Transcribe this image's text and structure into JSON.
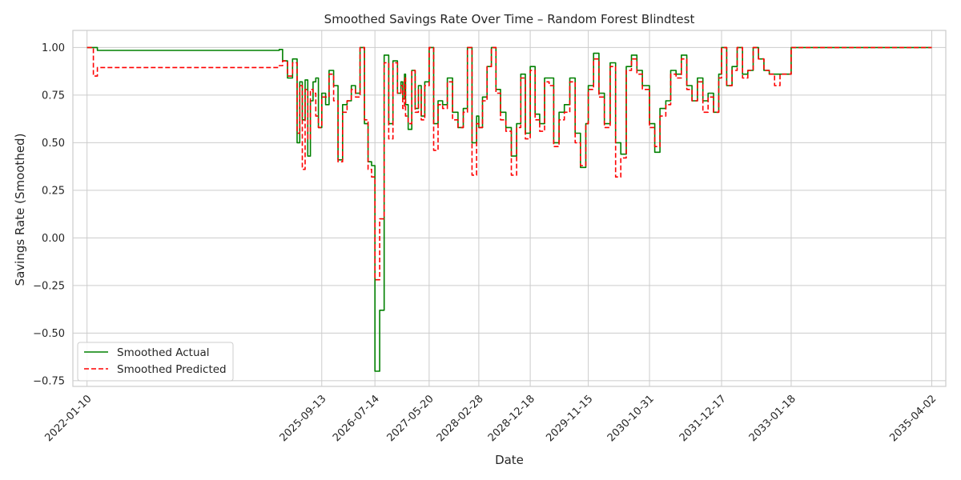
{
  "chart_data": {
    "type": "line",
    "title": "Smoothed Savings Rate Over Time – Random Forest Blindtest",
    "xlabel": "Date",
    "ylabel": "Savings Rate (Smoothed)",
    "xlim": [
      "2021-10-21",
      "2035-06-21"
    ],
    "ylim": [
      -0.78,
      1.09
    ],
    "yticks": [
      -0.75,
      -0.5,
      -0.25,
      0.0,
      0.25,
      0.5,
      0.75,
      1.0
    ],
    "ytick_labels": [
      "−0.75",
      "−0.50",
      "−0.25",
      "0.00",
      "0.25",
      "0.50",
      "0.75",
      "1.00"
    ],
    "xticks": [
      "2022-01-10",
      "2025-09-13",
      "2026-07-14",
      "2027-05-20",
      "2028-02-28",
      "2028-12-18",
      "2029-11-15",
      "2030-10-31",
      "2031-12-17",
      "2033-01-18",
      "2035-04-02"
    ],
    "grid": true,
    "legend_position": "lower-left",
    "colors": {
      "actual": "#008000",
      "predicted": "#ff0000",
      "grid": "#cccccc",
      "frame": "#cccccc",
      "text": "#262626"
    },
    "series": [
      {
        "name": "Smoothed Actual",
        "style": "solid",
        "x": [
          "2022-01-10",
          "2022-02-15",
          "2022-03-10",
          "2025-01-13",
          "2025-02-01",
          "2025-03-01",
          "2025-03-30",
          "2025-04-25",
          "2025-05-10",
          "2025-05-25",
          "2025-06-10",
          "2025-06-25",
          "2025-07-10",
          "2025-07-25",
          "2025-08-10",
          "2025-08-25",
          "2025-09-13",
          "2025-10-05",
          "2025-10-25",
          "2025-11-20",
          "2025-12-15",
          "2026-01-10",
          "2026-02-05",
          "2026-03-01",
          "2026-03-25",
          "2026-04-20",
          "2026-05-15",
          "2026-06-05",
          "2026-06-25",
          "2026-07-14",
          "2026-08-10",
          "2026-09-05",
          "2026-10-01",
          "2026-10-25",
          "2026-11-20",
          "2026-12-10",
          "2026-12-20",
          "2026-12-30",
          "2027-01-05",
          "2027-01-20",
          "2027-02-10",
          "2027-03-01",
          "2027-03-20",
          "2027-04-05",
          "2027-04-25",
          "2027-05-20",
          "2027-06-15",
          "2027-07-10",
          "2027-08-05",
          "2027-09-01",
          "2027-10-01",
          "2027-11-01",
          "2027-12-01",
          "2027-12-25",
          "2028-01-20",
          "2028-02-15",
          "2028-02-28",
          "2028-03-20",
          "2028-04-15",
          "2028-05-10",
          "2028-06-05",
          "2028-07-01",
          "2028-08-01",
          "2028-09-01",
          "2028-10-01",
          "2028-10-25",
          "2028-11-20",
          "2028-12-18",
          "2029-01-15",
          "2029-02-10",
          "2029-03-10",
          "2029-04-05",
          "2029-05-01",
          "2029-06-01",
          "2029-07-01",
          "2029-08-01",
          "2029-09-01",
          "2029-10-01",
          "2029-11-01",
          "2029-11-15",
          "2029-12-15",
          "2030-01-15",
          "2030-02-15",
          "2030-03-20",
          "2030-04-20",
          "2030-05-20",
          "2030-06-20",
          "2030-07-20",
          "2030-08-20",
          "2030-09-20",
          "2030-10-31",
          "2030-11-30",
          "2030-12-30",
          "2031-02-01",
          "2031-03-01",
          "2031-04-01",
          "2031-05-01",
          "2031-06-01",
          "2031-07-01",
          "2031-08-01",
          "2031-09-01",
          "2031-10-01",
          "2031-11-01",
          "2031-12-01",
          "2031-12-17",
          "2032-01-15",
          "2032-02-15",
          "2032-03-15",
          "2032-04-15",
          "2032-05-15",
          "2032-06-15",
          "2032-07-15",
          "2032-08-15",
          "2032-09-15",
          "2032-10-15",
          "2032-11-15",
          "2032-12-15",
          "2033-01-18",
          "2033-03-01",
          "2033-04-15",
          "2033-06-01",
          "2033-07-15",
          "2033-09-01",
          "2033-10-15",
          "2033-12-01",
          "2034-01-15",
          "2034-03-01",
          "2034-04-15",
          "2034-06-01",
          "2034-07-15",
          "2034-09-01",
          "2034-10-15",
          "2034-12-01",
          "2035-02-01",
          "2035-04-02"
        ],
        "y": [
          1.0,
          1.0,
          0.985,
          0.99,
          0.93,
          0.84,
          0.94,
          0.5,
          0.82,
          0.62,
          0.83,
          0.43,
          0.72,
          0.82,
          0.84,
          0.58,
          0.76,
          0.7,
          0.88,
          0.8,
          0.41,
          0.7,
          0.72,
          0.8,
          0.76,
          1.0,
          0.6,
          0.4,
          0.38,
          -0.7,
          -0.38,
          0.96,
          0.6,
          0.93,
          0.76,
          0.82,
          0.73,
          0.86,
          0.7,
          0.57,
          0.88,
          0.68,
          0.8,
          0.64,
          0.82,
          1.0,
          0.6,
          0.72,
          0.7,
          0.84,
          0.66,
          0.58,
          0.68,
          1.0,
          0.5,
          0.64,
          0.58,
          0.74,
          0.9,
          1.0,
          0.78,
          0.66,
          0.58,
          0.43,
          0.6,
          0.86,
          0.55,
          0.9,
          0.65,
          0.6,
          0.84,
          0.84,
          0.5,
          0.66,
          0.7,
          0.84,
          0.55,
          0.37,
          0.6,
          0.8,
          0.97,
          0.76,
          0.6,
          0.92,
          0.5,
          0.44,
          0.9,
          0.96,
          0.88,
          0.8,
          0.6,
          0.45,
          0.68,
          0.72,
          0.88,
          0.86,
          0.96,
          0.8,
          0.72,
          0.84,
          0.72,
          0.76,
          0.66,
          0.86,
          1.0,
          0.8,
          0.9,
          1.0,
          0.86,
          0.88,
          1.0,
          0.94,
          0.88,
          0.86,
          0.86,
          0.86,
          0.86,
          1.0,
          1.0,
          1.0,
          1.0,
          1.0,
          1.0,
          1.0,
          1.0,
          1.0,
          1.0,
          1.0,
          1.0,
          1.0,
          1.0,
          1.0,
          1.0,
          1.0,
          1.0
        ]
      },
      {
        "name": "Smoothed Predicted",
        "style": "dashed",
        "x": [
          "2022-01-10",
          "2022-02-15",
          "2022-03-10",
          "2025-01-13",
          "2025-02-01",
          "2025-03-01",
          "2025-03-30",
          "2025-04-25",
          "2025-05-10",
          "2025-05-25",
          "2025-06-10",
          "2025-06-25",
          "2025-07-10",
          "2025-07-25",
          "2025-08-10",
          "2025-08-25",
          "2025-09-13",
          "2025-10-05",
          "2025-10-25",
          "2025-11-20",
          "2025-12-15",
          "2026-01-10",
          "2026-02-05",
          "2026-03-01",
          "2026-03-25",
          "2026-04-20",
          "2026-05-15",
          "2026-06-05",
          "2026-06-25",
          "2026-07-14",
          "2026-08-10",
          "2026-09-05",
          "2026-10-01",
          "2026-10-25",
          "2026-11-20",
          "2026-12-10",
          "2026-12-20",
          "2026-12-30",
          "2027-01-05",
          "2027-01-20",
          "2027-02-10",
          "2027-03-01",
          "2027-03-20",
          "2027-04-05",
          "2027-04-25",
          "2027-05-20",
          "2027-06-15",
          "2027-07-10",
          "2027-08-05",
          "2027-09-01",
          "2027-10-01",
          "2027-11-01",
          "2027-12-01",
          "2027-12-25",
          "2028-01-20",
          "2028-02-15",
          "2028-02-28",
          "2028-03-20",
          "2028-04-15",
          "2028-05-10",
          "2028-06-05",
          "2028-07-01",
          "2028-08-01",
          "2028-09-01",
          "2028-10-01",
          "2028-10-25",
          "2028-11-20",
          "2028-12-18",
          "2029-01-15",
          "2029-02-10",
          "2029-03-10",
          "2029-04-05",
          "2029-05-01",
          "2029-06-01",
          "2029-07-01",
          "2029-08-01",
          "2029-09-01",
          "2029-10-01",
          "2029-11-01",
          "2029-11-15",
          "2029-12-15",
          "2030-01-15",
          "2030-02-15",
          "2030-03-20",
          "2030-04-20",
          "2030-05-20",
          "2030-06-20",
          "2030-07-20",
          "2030-08-20",
          "2030-09-20",
          "2030-10-31",
          "2030-11-30",
          "2030-12-30",
          "2031-02-01",
          "2031-03-01",
          "2031-04-01",
          "2031-05-01",
          "2031-06-01",
          "2031-07-01",
          "2031-08-01",
          "2031-09-01",
          "2031-10-01",
          "2031-11-01",
          "2031-12-01",
          "2031-12-17",
          "2032-01-15",
          "2032-02-15",
          "2032-03-15",
          "2032-04-15",
          "2032-05-15",
          "2032-06-15",
          "2032-07-15",
          "2032-08-15",
          "2032-09-15",
          "2032-10-15",
          "2032-11-15",
          "2032-12-15",
          "2033-01-18",
          "2033-03-01",
          "2033-04-15",
          "2033-06-01",
          "2033-07-15",
          "2033-09-01",
          "2033-10-15",
          "2033-12-01",
          "2034-01-15",
          "2034-03-01",
          "2034-04-15",
          "2034-06-01",
          "2034-07-15",
          "2034-09-01",
          "2034-10-15",
          "2034-12-01",
          "2035-02-01",
          "2035-04-02"
        ],
        "y": [
          1.0,
          0.85,
          0.895,
          0.905,
          0.93,
          0.85,
          0.92,
          0.55,
          0.8,
          0.36,
          0.78,
          0.52,
          0.78,
          0.76,
          0.64,
          0.58,
          0.74,
          0.74,
          0.86,
          0.72,
          0.4,
          0.66,
          0.72,
          0.78,
          0.74,
          1.0,
          0.62,
          0.36,
          0.32,
          -0.22,
          0.1,
          0.92,
          0.52,
          0.92,
          0.76,
          0.8,
          0.68,
          0.84,
          0.64,
          0.6,
          0.88,
          0.66,
          0.78,
          0.62,
          0.8,
          1.0,
          0.46,
          0.7,
          0.68,
          0.82,
          0.62,
          0.58,
          0.66,
          1.0,
          0.33,
          0.6,
          0.58,
          0.72,
          0.9,
          1.0,
          0.76,
          0.62,
          0.56,
          0.33,
          0.58,
          0.84,
          0.52,
          0.88,
          0.62,
          0.56,
          0.82,
          0.8,
          0.48,
          0.62,
          0.66,
          0.82,
          0.5,
          0.38,
          0.6,
          0.78,
          0.94,
          0.74,
          0.58,
          0.9,
          0.32,
          0.42,
          0.88,
          0.94,
          0.86,
          0.78,
          0.58,
          0.48,
          0.64,
          0.7,
          0.86,
          0.84,
          0.94,
          0.78,
          0.72,
          0.82,
          0.66,
          0.74,
          0.66,
          0.84,
          1.0,
          0.8,
          0.88,
          1.0,
          0.84,
          0.88,
          1.0,
          0.94,
          0.88,
          0.86,
          0.8,
          0.86,
          0.86,
          1.0,
          1.0,
          1.0,
          1.0,
          1.0,
          1.0,
          1.0,
          1.0,
          1.0,
          1.0,
          1.0,
          1.0,
          1.0,
          1.0,
          1.0,
          1.0,
          1.0,
          1.0
        ]
      }
    ]
  }
}
